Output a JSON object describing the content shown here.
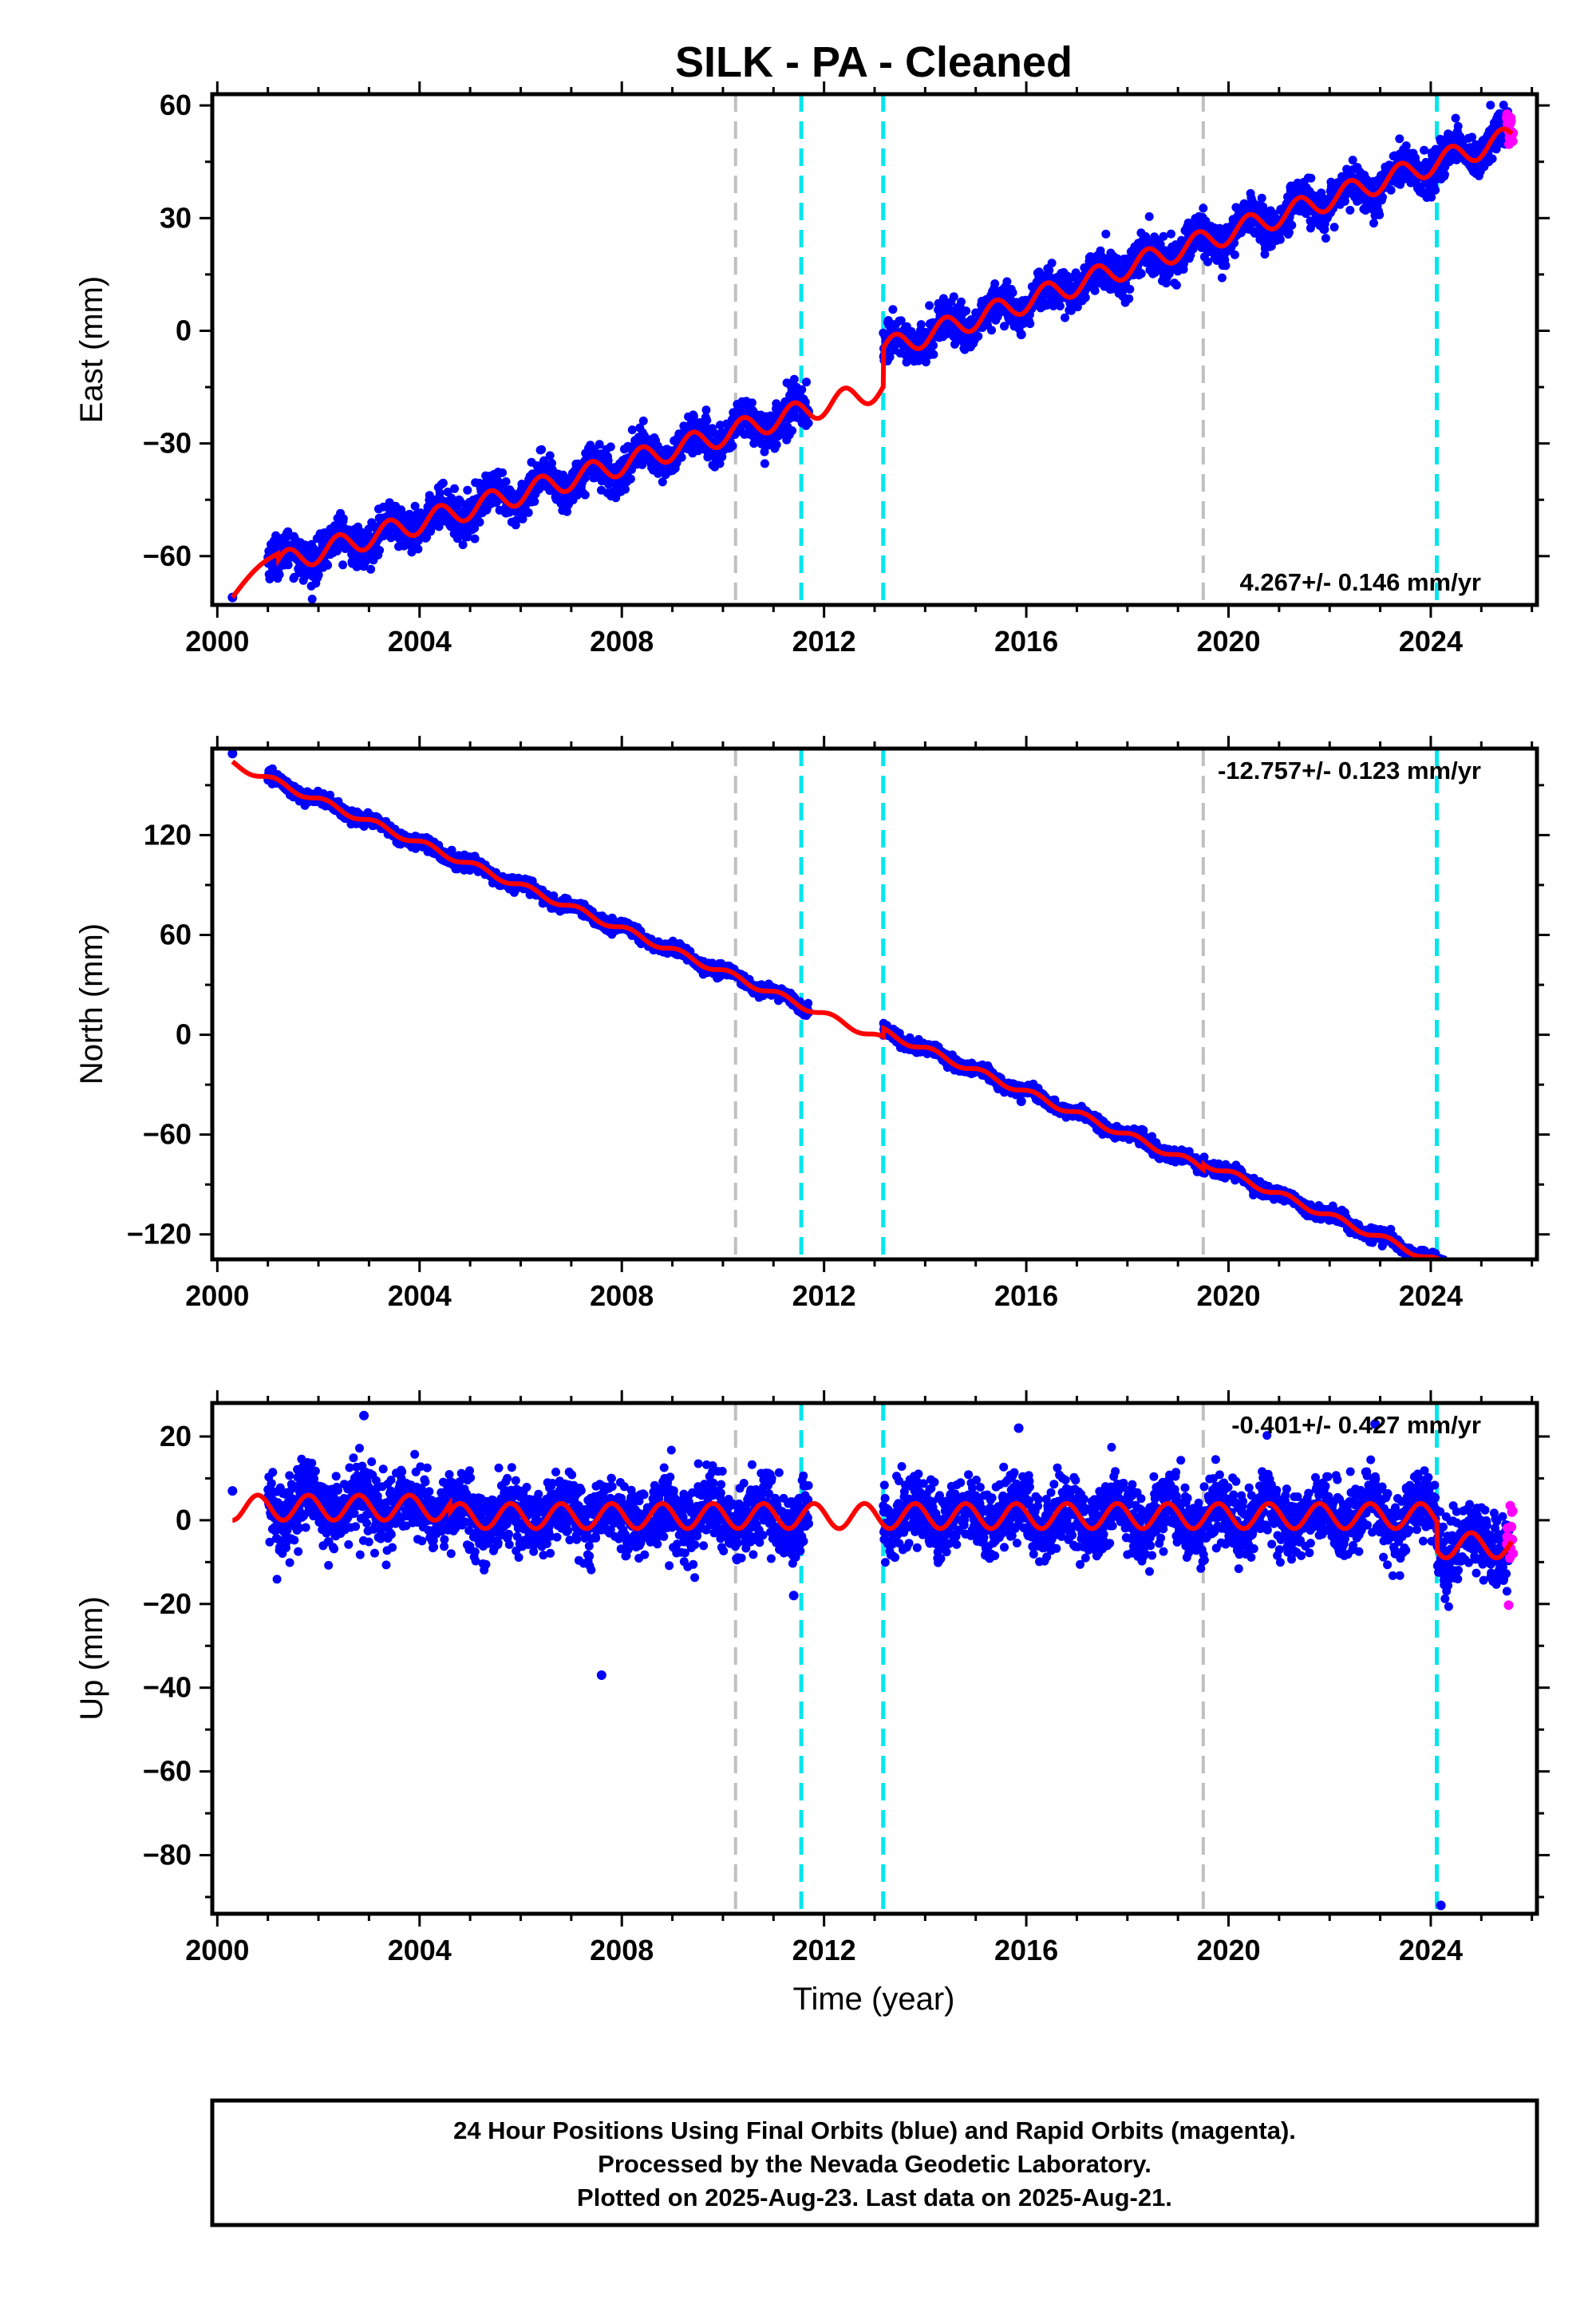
{
  "chart_data": {
    "title": "SILK  - PA - Cleaned",
    "type": "scatter",
    "xlabel": "Time (year)",
    "xlim": [
      1999.9,
      2026.1
    ],
    "xticks": [
      2000,
      2004,
      2008,
      2012,
      2016,
      2020,
      2024
    ],
    "event_lines": {
      "gray": [
        2010.25,
        2019.5
      ],
      "cyan": [
        2011.55,
        2013.17,
        2024.12
      ]
    },
    "colors": {
      "final_orbits": "#0000ff",
      "rapid_orbits": "#ff00ff",
      "model": "#ff0000",
      "gray_lines": "#c0c0c0",
      "cyan_lines": "#00e5ee"
    },
    "panels": [
      {
        "ylabel": "East (mm)",
        "ylim": [
          -73,
          63
        ],
        "yticks": [
          -60,
          -30,
          0,
          30,
          60
        ],
        "rate": "4.267+/- 0.146 mm/yr",
        "rate_position": "bottom-right",
        "model": {
          "type": "east",
          "start": -70
        },
        "data_segments": [
          {
            "from": 2001.0,
            "to": 2011.7
          },
          {
            "from": 2013.17,
            "to": 2025.55
          }
        ],
        "scatter_sd": 2.6,
        "rapid_range": [
          2025.5,
          2025.63
        ],
        "outliers": [
          [
            2000.3,
            -71
          ],
          [
            2015.9,
            -1
          ]
        ]
      },
      {
        "ylabel": "North (mm)",
        "ylim": [
          -135,
          172
        ],
        "yticks": [
          -120,
          -60,
          0,
          60,
          120
        ],
        "rate": "-12.757+/- 0.123 mm/yr",
        "rate_position": "top-right",
        "model": {
          "type": "north"
        },
        "data_segments": [
          {
            "from": 2001.0,
            "to": 2011.7
          },
          {
            "from": 2013.17,
            "to": 2025.55
          }
        ],
        "scatter_sd": 1.8,
        "rapid_range": [
          2025.5,
          2025.63
        ],
        "outliers": [
          [
            2000.3,
            169
          ],
          [
            2015.9,
            -40
          ]
        ]
      },
      {
        "ylabel": "Up (mm)",
        "ylim": [
          -94,
          28
        ],
        "yticks": [
          -80,
          -60,
          -40,
          -20,
          0,
          20
        ],
        "rate": "-0.401+/- 0.427 mm/yr",
        "rate_position": "top-right",
        "model": {
          "type": "up"
        },
        "data_segments": [
          {
            "from": 2001.0,
            "to": 2011.7
          },
          {
            "from": 2013.17,
            "to": 2025.55
          }
        ],
        "scatter_sd": 4.2,
        "rapid_range": [
          2025.5,
          2025.63
        ],
        "outliers": [
          [
            2000.3,
            7
          ],
          [
            2007.6,
            -37
          ],
          [
            2011.4,
            -18
          ],
          [
            2024.2,
            -92
          ],
          [
            2002.9,
            25
          ],
          [
            2015.85,
            22
          ],
          [
            2022.9,
            23
          ]
        ]
      }
    ]
  },
  "footer": {
    "line1": "24 Hour Positions Using Final Orbits (blue) and Rapid Orbits (magenta).",
    "line2": "Processed by the Nevada Geodetic Laboratory.",
    "line3": "Plotted on 2025-Aug-23. Last data on 2025-Aug-21."
  }
}
